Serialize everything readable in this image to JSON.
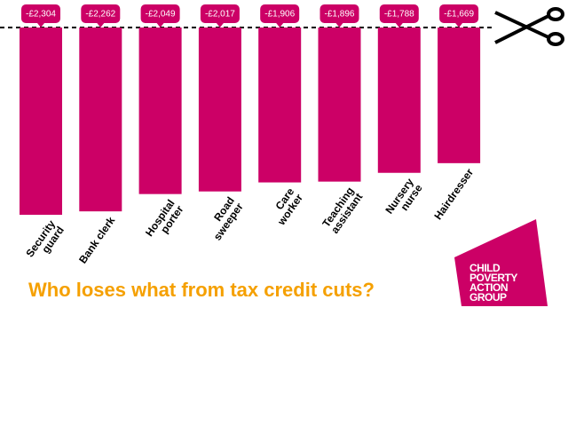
{
  "chart_data": {
    "type": "bar",
    "title": "Who loses what from tax credit cuts?",
    "categories": [
      [
        "Security",
        "guard"
      ],
      [
        "Bank clerk"
      ],
      [
        "Hospital",
        "porter"
      ],
      [
        "Road",
        "sweeper"
      ],
      [
        "Care",
        "worker"
      ],
      [
        "Teaching",
        "assistant"
      ],
      [
        "Nursery",
        "nurse"
      ],
      [
        "Hairdresser"
      ]
    ],
    "values": [
      -2304,
      -2262,
      -2049,
      -2017,
      -1906,
      -1896,
      -1788,
      -1669
    ],
    "value_labels": [
      "-£2,304",
      "-£2,262",
      "-£2,049",
      "-£2,017",
      "-£1,906",
      "-£1,896",
      "-£1,788",
      "-£1,669"
    ],
    "color": "#cc0066"
  },
  "logo": [
    "CHILD",
    "POVERTY",
    "ACTION",
    "GROUP"
  ]
}
